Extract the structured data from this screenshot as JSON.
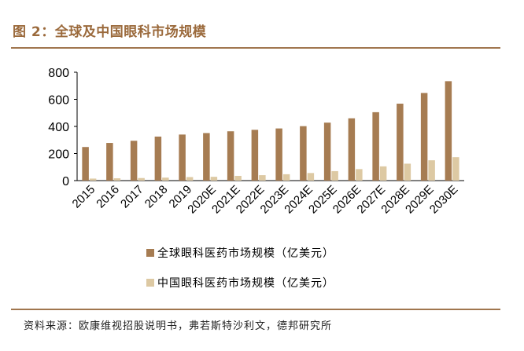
{
  "figure": {
    "title": "图 2：全球及中国眼科市场规模",
    "source": "资料来源：欧康维视招股说明书，弗若斯特沙利文，德邦研究所"
  },
  "chart_data": {
    "type": "bar",
    "categories": [
      "2015",
      "2016",
      "2017",
      "2018",
      "2019",
      "2020E",
      "2021E",
      "2022E",
      "2023E",
      "2024E",
      "2025E",
      "2026E",
      "2027E",
      "2028E",
      "2029E",
      "2030E"
    ],
    "series": [
      {
        "name": "全球眼科医药市场规模（亿美元）",
        "color": "#a67c52",
        "values": [
          248,
          278,
          294,
          325,
          340,
          351,
          364,
          375,
          385,
          402,
          428,
          460,
          505,
          568,
          647,
          734
        ]
      },
      {
        "name": "中国眼科医药市场规模（亿美元）",
        "color": "#ddc9a3",
        "values": [
          15,
          17,
          19,
          22,
          26,
          28,
          35,
          40,
          47,
          56,
          70,
          85,
          105,
          125,
          150,
          173
        ]
      }
    ],
    "ylim": [
      0,
      800
    ],
    "yticks": [
      0,
      200,
      400,
      600,
      800
    ],
    "grid": false,
    "legend": "bottom"
  }
}
